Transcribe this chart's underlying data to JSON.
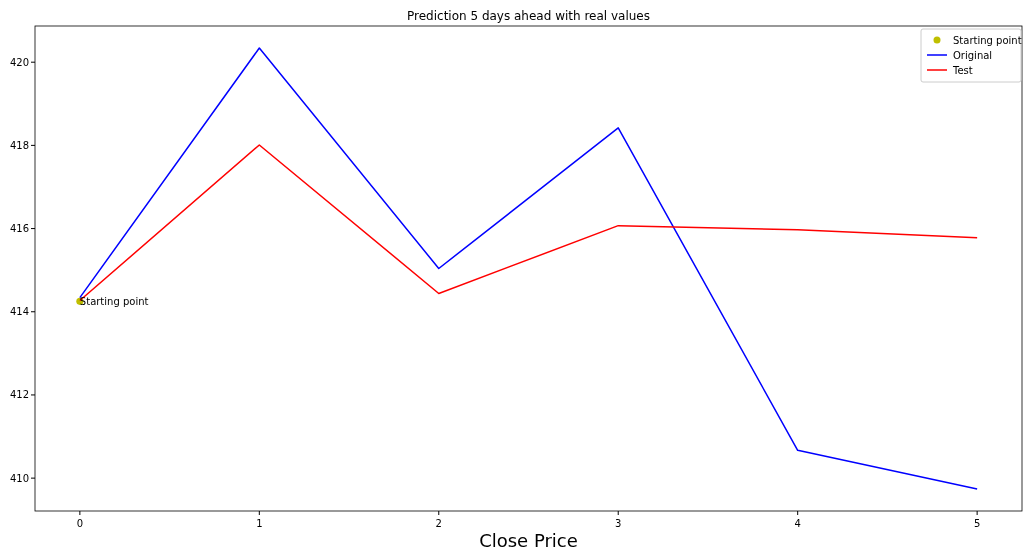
{
  "chart_data": {
    "type": "line",
    "title": "Prediction 5 days ahead with real values",
    "xlabel": "Close Price",
    "x": [
      0,
      1,
      2,
      3,
      4,
      5
    ],
    "series": [
      {
        "name": "Starting point",
        "type": "scatter",
        "color": "#bfbf00",
        "x": [
          0
        ],
        "values": [
          414.25
        ],
        "marker": "circle"
      },
      {
        "name": "Original",
        "color": "#0000ff",
        "values": [
          414.34,
          420.34,
          415.04,
          418.42,
          410.67,
          409.74
        ]
      },
      {
        "name": "Test",
        "color": "#ff0000",
        "values": [
          414.27,
          418.01,
          414.44,
          416.07,
          415.97,
          415.78
        ]
      }
    ],
    "annotations": [
      {
        "text": "Starting point",
        "x": 0,
        "y": 414.25
      }
    ],
    "xlim": [
      -0.25,
      5.25
    ],
    "xticks": [
      0,
      1,
      2,
      3,
      4,
      5
    ],
    "ylim": [
      409.21,
      420.87
    ],
    "yticks": [
      410,
      412,
      414,
      416,
      418,
      420
    ],
    "grid": false,
    "legend": "top right"
  }
}
